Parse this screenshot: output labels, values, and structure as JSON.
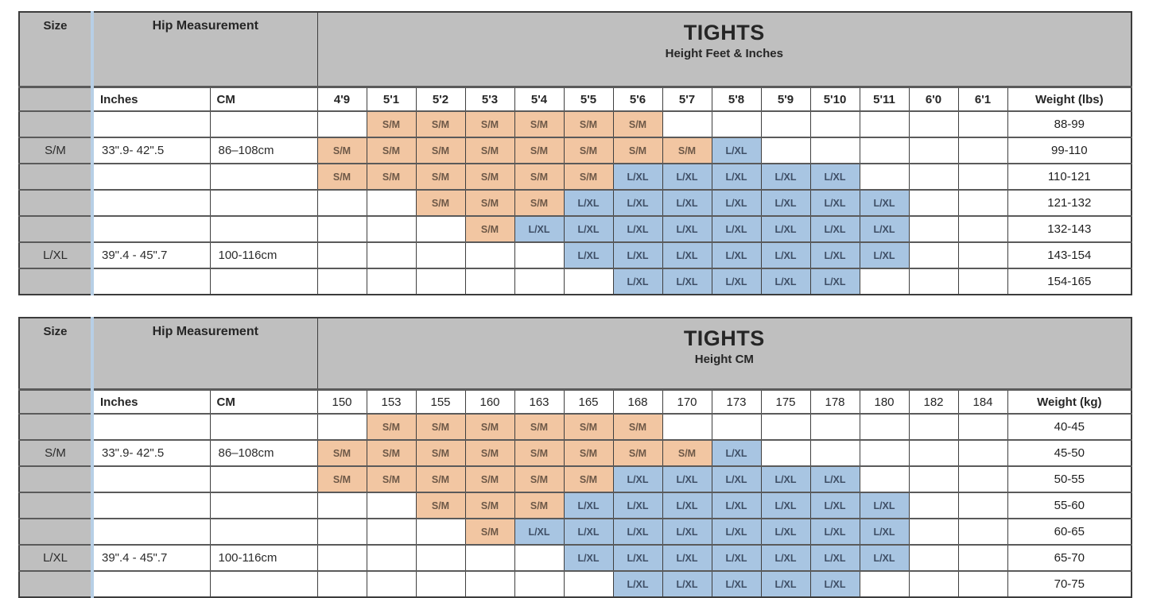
{
  "colors": {
    "header_gray": "#bfbfbf",
    "sm_fill": "#f2c6a2",
    "lxl_fill": "#a8c5e2",
    "size_column_stripe": "#b7cfe6",
    "grid_line": "#3f3f3f",
    "row_line": "#5a5a5a"
  },
  "chart_data": [
    {
      "type": "table",
      "title": "TIGHTS",
      "subtitle": "Height Feet & Inches",
      "corner": {
        "size_label": "Size",
        "hip_label": "Hip Measurement"
      },
      "sub_headers": {
        "inches": "Inches",
        "cm": "CM",
        "weight": "Weight (lbs)"
      },
      "heights": [
        "4'9",
        "5'1",
        "5'2",
        "5'3",
        "5'4",
        "5'5",
        "5'6",
        "5'7",
        "5'8",
        "5'9",
        "5'10",
        "5'11",
        "6'0",
        "6'1"
      ],
      "rows": [
        {
          "size": "",
          "hip_in": "",
          "hip_cm": "",
          "cells": [
            "",
            "S/M",
            "S/M",
            "S/M",
            "S/M",
            "S/M",
            "S/M",
            "",
            "",
            "",
            "",
            "",
            "",
            ""
          ],
          "weight": "88-99"
        },
        {
          "size": "S/M",
          "hip_in": "33\".9- 42\".5",
          "hip_cm": "86–108cm",
          "cells": [
            "S/M",
            "S/M",
            "S/M",
            "S/M",
            "S/M",
            "S/M",
            "S/M",
            "S/M",
            "L/XL",
            "",
            "",
            "",
            "",
            ""
          ],
          "weight": "99-110"
        },
        {
          "size": "",
          "hip_in": "",
          "hip_cm": "",
          "cells": [
            "S/M",
            "S/M",
            "S/M",
            "S/M",
            "S/M",
            "S/M",
            "L/XL",
            "L/XL",
            "L/XL",
            "L/XL",
            "L/XL",
            "",
            "",
            ""
          ],
          "weight": "110-121"
        },
        {
          "size": "",
          "hip_in": "",
          "hip_cm": "",
          "cells": [
            "",
            "",
            "S/M",
            "S/M",
            "S/M",
            "L/XL",
            "L/XL",
            "L/XL",
            "L/XL",
            "L/XL",
            "L/XL",
            "L/XL",
            "",
            ""
          ],
          "weight": "121-132"
        },
        {
          "size": "",
          "hip_in": "",
          "hip_cm": "",
          "cells": [
            "",
            "",
            "",
            "S/M",
            "L/XL",
            "L/XL",
            "L/XL",
            "L/XL",
            "L/XL",
            "L/XL",
            "L/XL",
            "L/XL",
            "",
            ""
          ],
          "weight": "132-143"
        },
        {
          "size": "L/XL",
          "hip_in": "39\".4 - 45\".7",
          "hip_cm": "100-116cm",
          "cells": [
            "",
            "",
            "",
            "",
            "",
            "L/XL",
            "L/XL",
            "L/XL",
            "L/XL",
            "L/XL",
            "L/XL",
            "L/XL",
            "",
            ""
          ],
          "weight": "143-154"
        },
        {
          "size": "",
          "hip_in": "",
          "hip_cm": "",
          "cells": [
            "",
            "",
            "",
            "",
            "",
            "",
            "L/XL",
            "L/XL",
            "L/XL",
            "L/XL",
            "L/XL",
            "",
            "",
            ""
          ],
          "weight": "154-165"
        }
      ]
    },
    {
      "type": "table",
      "title": "TIGHTS",
      "subtitle": "Height CM",
      "corner": {
        "size_label": "Size",
        "hip_label": "Hip Measurement"
      },
      "sub_headers": {
        "inches": "Inches",
        "cm": "CM",
        "weight": "Weight (kg)"
      },
      "heights": [
        "150",
        "153",
        "155",
        "160",
        "163",
        "165",
        "168",
        "170",
        "173",
        "175",
        "178",
        "180",
        "182",
        "184"
      ],
      "rows": [
        {
          "size": "",
          "hip_in": "",
          "hip_cm": "",
          "cells": [
            "",
            "S/M",
            "S/M",
            "S/M",
            "S/M",
            "S/M",
            "S/M",
            "",
            "",
            "",
            "",
            "",
            "",
            ""
          ],
          "weight": "40-45"
        },
        {
          "size": "S/M",
          "hip_in": "33\".9- 42\".5",
          "hip_cm": "86–108cm",
          "cells": [
            "S/M",
            "S/M",
            "S/M",
            "S/M",
            "S/M",
            "S/M",
            "S/M",
            "S/M",
            "L/XL",
            "",
            "",
            "",
            "",
            ""
          ],
          "weight": "45-50"
        },
        {
          "size": "",
          "hip_in": "",
          "hip_cm": "",
          "cells": [
            "S/M",
            "S/M",
            "S/M",
            "S/M",
            "S/M",
            "S/M",
            "L/XL",
            "L/XL",
            "L/XL",
            "L/XL",
            "L/XL",
            "",
            "",
            ""
          ],
          "weight": "50-55"
        },
        {
          "size": "",
          "hip_in": "",
          "hip_cm": "",
          "cells": [
            "",
            "",
            "S/M",
            "S/M",
            "S/M",
            "L/XL",
            "L/XL",
            "L/XL",
            "L/XL",
            "L/XL",
            "L/XL",
            "L/XL",
            "",
            ""
          ],
          "weight": "55-60"
        },
        {
          "size": "",
          "hip_in": "",
          "hip_cm": "",
          "cells": [
            "",
            "",
            "",
            "S/M",
            "L/XL",
            "L/XL",
            "L/XL",
            "L/XL",
            "L/XL",
            "L/XL",
            "L/XL",
            "L/XL",
            "",
            ""
          ],
          "weight": "60-65"
        },
        {
          "size": "L/XL",
          "hip_in": "39\".4 - 45\".7",
          "hip_cm": "100-116cm",
          "cells": [
            "",
            "",
            "",
            "",
            "",
            "L/XL",
            "L/XL",
            "L/XL",
            "L/XL",
            "L/XL",
            "L/XL",
            "L/XL",
            "",
            ""
          ],
          "weight": "65-70"
        },
        {
          "size": "",
          "hip_in": "",
          "hip_cm": "",
          "cells": [
            "",
            "",
            "",
            "",
            "",
            "",
            "L/XL",
            "L/XL",
            "L/XL",
            "L/XL",
            "L/XL",
            "",
            "",
            ""
          ],
          "weight": "70-75"
        }
      ]
    }
  ],
  "legend": {
    "sm_value": "S/M",
    "lxl_value": "L/XL"
  }
}
